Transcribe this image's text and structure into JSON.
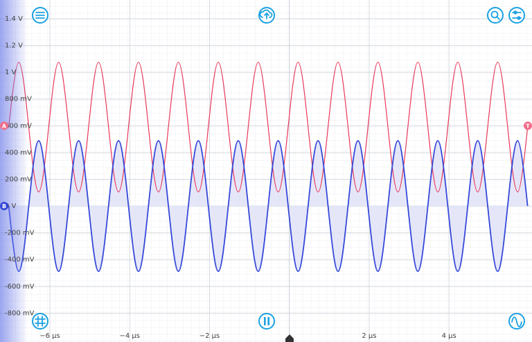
{
  "chart_data": {
    "type": "line",
    "xlim": [
      -7.25,
      6.08
    ],
    "xticks": [
      {
        "value": -6,
        "label": "−6 µs"
      },
      {
        "value": -4,
        "label": "−4 µs"
      },
      {
        "value": -2,
        "label": "−2 µs"
      },
      {
        "value": 2,
        "label": "2 µs"
      },
      {
        "value": 4,
        "label": "4 µs"
      }
    ],
    "ylim": [
      -1.016,
      1.54
    ],
    "yticks": [
      {
        "value": 1.4,
        "label": "1.4 V"
      },
      {
        "value": 1.2,
        "label": "1.2 V"
      },
      {
        "value": 1,
        "label": "1 V"
      },
      {
        "value": 0.8,
        "label": "800 mV"
      },
      {
        "value": 0.6,
        "label": "600 mV"
      },
      {
        "value": 0.4,
        "label": "400 mV"
      },
      {
        "value": 0.2,
        "label": "200 mV"
      },
      {
        "value": 0,
        "label": "0 V"
      },
      {
        "value": -0.2,
        "label": "-200 mV"
      },
      {
        "value": -0.4,
        "label": "-400 mV"
      },
      {
        "value": -0.6,
        "label": "-600 mV"
      },
      {
        "value": -0.8,
        "label": "-800 mV"
      }
    ],
    "grid": true,
    "x": [
      -7.03,
      -6.78,
      -6.53,
      -6.28,
      -6.03,
      -5.78,
      -5.53,
      -5.28,
      -5.03,
      -4.78,
      -4.53,
      -4.28,
      -4.03,
      -3.78,
      -3.53,
      -3.28,
      -3.03,
      -2.78,
      -2.53,
      -2.28,
      -2.03,
      -1.78,
      -1.53,
      -1.28,
      -1.03,
      -0.78,
      -0.53,
      -0.28,
      -0.03,
      0.22,
      0.47,
      0.72,
      0.97,
      1.22,
      1.47,
      1.72,
      1.97,
      2.22,
      2.47,
      2.72,
      2.97,
      3.22,
      3.47,
      3.72,
      3.97,
      4.22,
      4.47,
      4.72,
      4.97,
      5.22,
      5.47,
      5.72,
      5.97
    ],
    "series": [
      {
        "color": "#e8385a",
        "values": [
          0.59,
          1.075,
          0.59,
          0.105,
          0.59,
          1.075,
          0.59,
          0.105,
          0.59,
          1.075,
          0.59,
          0.105,
          0.59,
          1.075,
          0.59,
          0.105,
          0.59,
          1.075,
          0.59,
          0.105,
          0.59,
          1.075,
          0.59,
          0.105,
          0.59,
          1.075,
          0.59,
          0.105,
          0.59,
          1.075,
          0.59,
          0.105,
          0.59,
          1.075,
          0.59,
          0.105,
          0.59,
          1.075,
          0.59,
          0.105,
          0.59,
          1.075,
          0.59,
          0.105,
          0.59,
          1.075,
          0.59,
          0.105,
          0.59,
          1.075,
          0.59,
          0.105,
          0.59
        ]
      },
      {
        "color": "#3548d8",
        "fill": "#dfe1f8",
        "values": [
          0,
          -0.488,
          0,
          0.488,
          0,
          -0.488,
          0,
          0.488,
          0,
          -0.488,
          0,
          0.488,
          0,
          -0.488,
          0,
          0.488,
          0,
          -0.488,
          0,
          0.488,
          0,
          -0.488,
          0,
          0.488,
          0,
          -0.488,
          0,
          0.488,
          0,
          -0.488,
          0,
          0.488,
          0,
          -0.488,
          0,
          0.488,
          0,
          -0.488,
          0,
          0.488,
          0,
          -0.488,
          0,
          0.488,
          0,
          -0.488,
          0,
          0.488,
          0,
          -0.488,
          0,
          0.488,
          0
        ]
      }
    ],
    "markers": [
      {
        "label": "A",
        "value": 0.6,
        "side": "left",
        "color": "#f06d8a"
      },
      {
        "label": "B",
        "value": 0,
        "side": "left",
        "color": "#3548d8"
      },
      {
        "label": "T",
        "value": 0.6,
        "side": "right",
        "color": "#f06d8a"
      }
    ]
  }
}
